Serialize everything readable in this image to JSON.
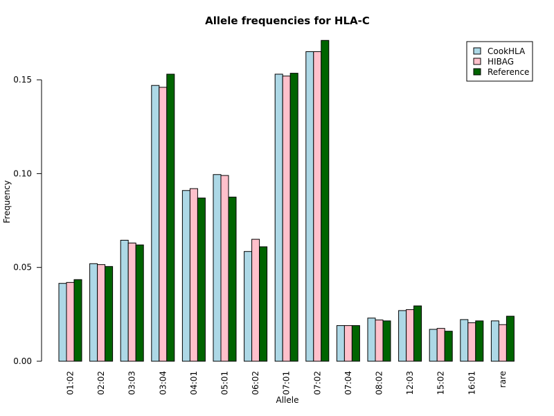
{
  "chart_data": {
    "type": "bar",
    "title": "Allele frequencies for HLA-C",
    "xlabel": "Allele",
    "ylabel": "Frequency",
    "ylim": [
      0,
      0.17
    ],
    "yticks": [
      "0.00",
      "0.05",
      "0.10",
      "0.15"
    ],
    "ytick_values": [
      0,
      0.05,
      0.1,
      0.15
    ],
    "categories": [
      "01:02",
      "02:02",
      "03:03",
      "03:04",
      "04:01",
      "05:01",
      "06:02",
      "07:01",
      "07:02",
      "07:04",
      "08:02",
      "12:03",
      "15:02",
      "16:01",
      "rare"
    ],
    "series": [
      {
        "name": "CookHLA",
        "color": "#add8e6",
        "values": [
          0.0415,
          0.052,
          0.0645,
          0.147,
          0.091,
          0.0995,
          0.0585,
          0.153,
          0.165,
          0.019,
          0.023,
          0.027,
          0.017,
          0.0222,
          0.0215
        ]
      },
      {
        "name": "HIBAG",
        "color": "#ffc0cb",
        "values": [
          0.042,
          0.0515,
          0.063,
          0.146,
          0.092,
          0.099,
          0.065,
          0.152,
          0.165,
          0.019,
          0.022,
          0.0275,
          0.0175,
          0.0205,
          0.0195
        ]
      },
      {
        "name": "Reference",
        "color": "#006400",
        "values": [
          0.0435,
          0.0505,
          0.062,
          0.153,
          0.087,
          0.0875,
          0.061,
          0.1535,
          0.171,
          0.019,
          0.0215,
          0.0295,
          0.016,
          0.0215,
          0.024
        ]
      }
    ],
    "legend_position": "top-right",
    "grid": false
  }
}
